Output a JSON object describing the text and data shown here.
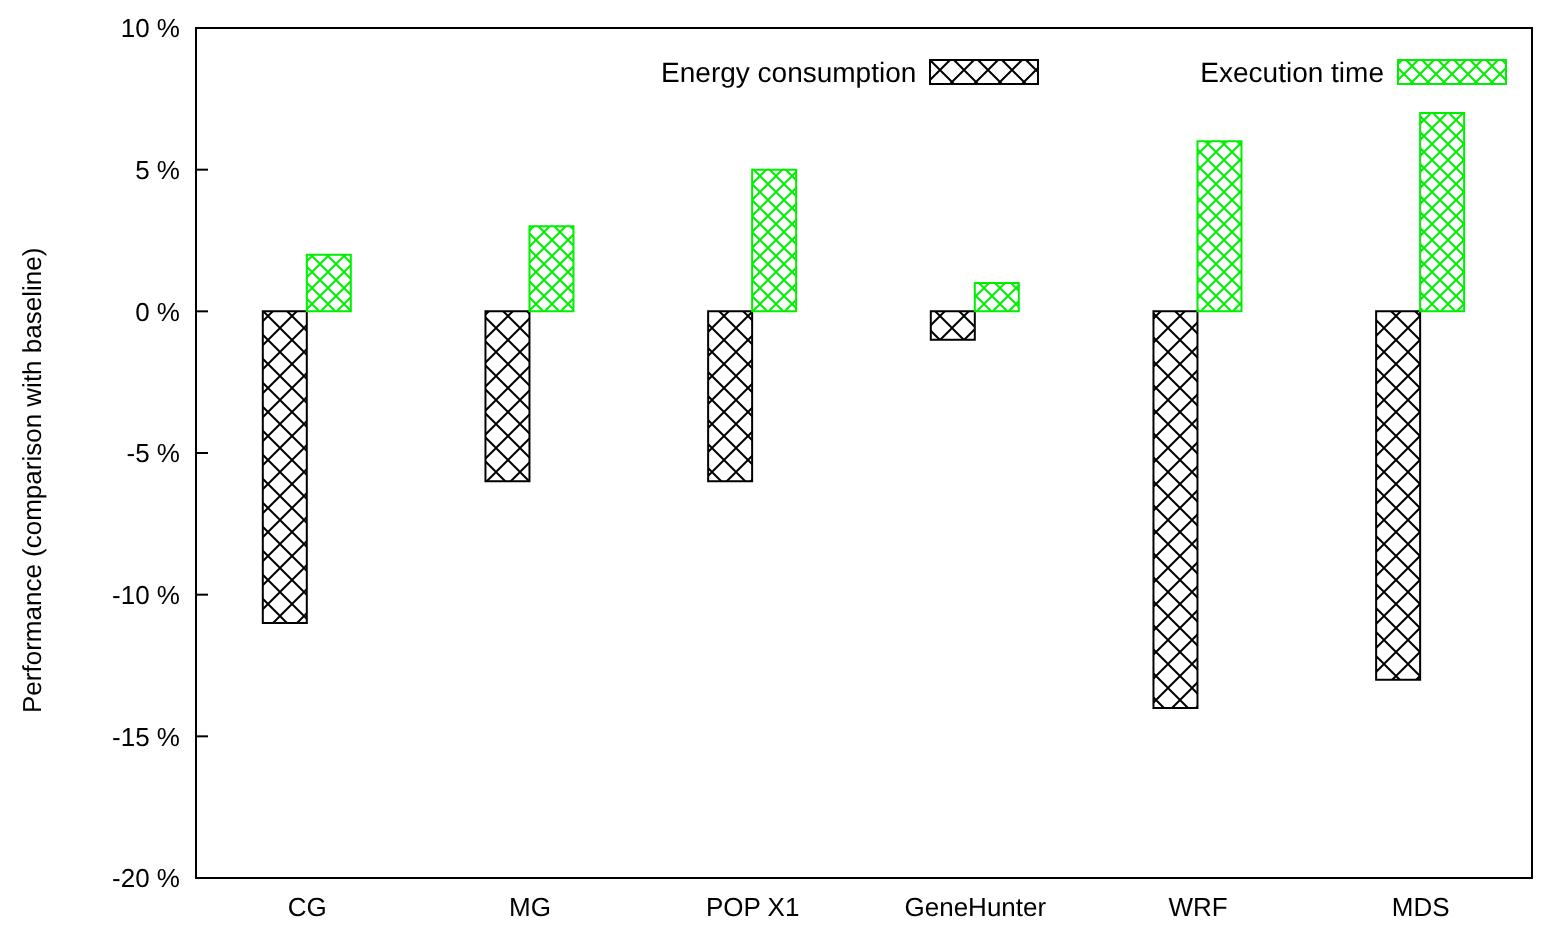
{
  "chart_data": {
    "type": "bar",
    "ylabel": "Performance (comparison with baseline)",
    "categories": [
      "CG",
      "MG",
      "POP X1",
      "GeneHunter",
      "WRF",
      "MDS"
    ],
    "series": [
      {
        "name": "Energy consumption",
        "color": "#000000",
        "values": [
          -11,
          -6,
          -6,
          -1,
          -14,
          -13
        ]
      },
      {
        "name": "Execution time",
        "color": "#00ee00",
        "values": [
          2,
          3,
          5,
          1,
          6,
          7
        ]
      }
    ],
    "ylim": [
      -20,
      10
    ],
    "yticks": [
      {
        "value": -20,
        "label": "-20 %"
      },
      {
        "value": -15,
        "label": "-15 %"
      },
      {
        "value": -10,
        "label": "-10 %"
      },
      {
        "value": -5,
        "label": "-5 %"
      },
      {
        "value": 0,
        "label": "0 %"
      },
      {
        "value": 5,
        "label": "5 %"
      },
      {
        "value": 10,
        "label": "10 %"
      }
    ],
    "grid": false,
    "legend": "top right"
  }
}
